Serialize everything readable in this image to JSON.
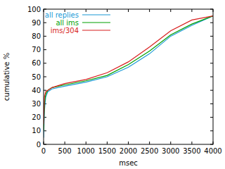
{
  "chart_data": {
    "type": "line",
    "x_label": "msec",
    "y_label": "cumulative %",
    "x": [
      0,
      20,
      50,
      100,
      200,
      500,
      1000,
      1500,
      2000,
      2500,
      3000,
      3500,
      4000
    ],
    "series": [
      {
        "name": "all replies",
        "color": "#1a9ad6",
        "values": [
          5,
          25,
          35,
          39,
          41,
          43,
          46,
          50,
          57,
          67,
          80,
          88,
          95
        ]
      },
      {
        "name": "all ims",
        "color": "#00a000",
        "values": [
          10,
          30,
          37,
          40,
          42,
          44,
          47,
          51,
          59,
          69,
          81,
          89,
          95
        ]
      },
      {
        "name": "ims/304",
        "color": "#d81e1e",
        "values": [
          15,
          35,
          39,
          40,
          42,
          45,
          48,
          53,
          61,
          72,
          84,
          92,
          95
        ]
      }
    ],
    "xlim": [
      0,
      4000
    ],
    "xticks": [
      0,
      500,
      1000,
      1500,
      2000,
      2500,
      3000,
      3500,
      4000
    ],
    "ylim": [
      0,
      100
    ],
    "yticks": [
      0,
      10,
      20,
      30,
      40,
      50,
      60,
      70,
      80,
      90,
      100
    ],
    "grid": false,
    "legend": "top-left"
  }
}
